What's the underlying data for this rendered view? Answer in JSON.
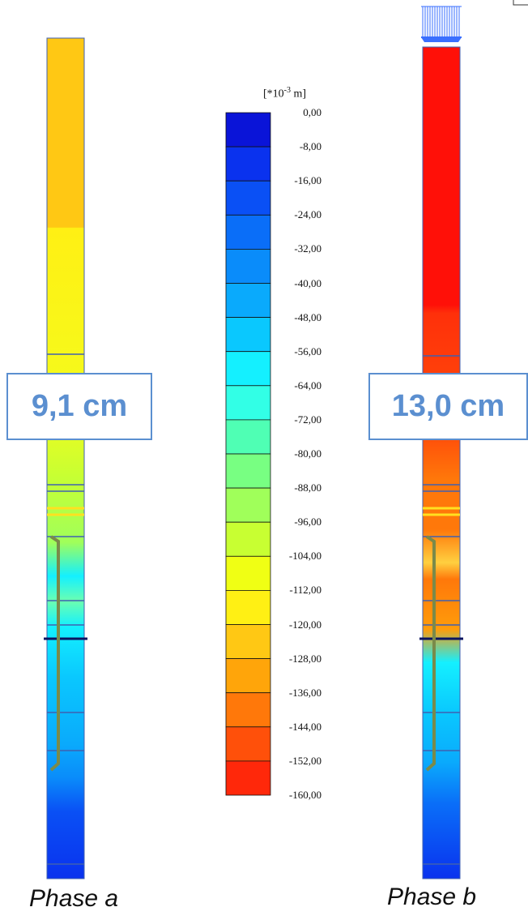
{
  "legend": {
    "unit_prefix": "[*10",
    "unit_exp": "-3",
    "unit_suffix": " m]",
    "levels": [
      "0,00",
      "-8,00",
      "-16,00",
      "-24,00",
      "-32,00",
      "-40,00",
      "-48,00",
      "-56,00",
      "-64,00",
      "-72,00",
      "-80,00",
      "-88,00",
      "-96,00",
      "-104,00",
      "-112,00",
      "-120,00",
      "-128,00",
      "-136,00",
      "-144,00",
      "-152,00",
      "-160,00"
    ],
    "colors": [
      "#0a14d8",
      "#0a32ee",
      "#0a50f5",
      "#0a6ef8",
      "#0a8cfa",
      "#0aaafc",
      "#0ac8fe",
      "#14f0ff",
      "#32ffe6",
      "#4fffb4",
      "#78ff82",
      "#a0ff5a",
      "#c8ff32",
      "#f0ff14",
      "#fff014",
      "#ffc814",
      "#ffa50a",
      "#ff780a",
      "#ff500a",
      "#ff280a"
    ]
  },
  "columns": [
    {
      "caption": "Phase a",
      "settlement_label": "9,1 cm"
    },
    {
      "caption": "Phase b",
      "settlement_label": "13,0 cm"
    }
  ],
  "colors": {
    "accent": "#5b8fd0",
    "pile": "#7a8a4a",
    "water_line": "#0b1460"
  }
}
